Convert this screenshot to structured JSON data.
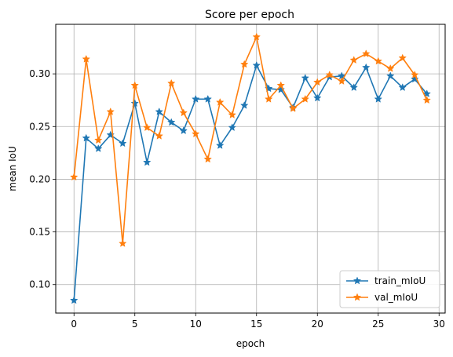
{
  "chart_data": {
    "type": "line",
    "title": "Score per epoch",
    "xlabel": "epoch",
    "ylabel": "mean IoU",
    "xlim": [
      -1.5,
      30.5
    ],
    "ylim": [
      0.073,
      0.347
    ],
    "xticks": [
      0,
      5,
      10,
      15,
      20,
      25,
      30
    ],
    "yticks": [
      0.1,
      0.15,
      0.2,
      0.25,
      0.3
    ],
    "ytick_labels": [
      "0.10",
      "0.15",
      "0.20",
      "0.25",
      "0.30"
    ],
    "grid": true,
    "legend": "lower-right",
    "marker": "star",
    "x": [
      0,
      1,
      2,
      3,
      4,
      5,
      6,
      7,
      8,
      9,
      10,
      11,
      12,
      13,
      14,
      15,
      16,
      17,
      18,
      19,
      20,
      21,
      22,
      23,
      24,
      25,
      26,
      27,
      28,
      29
    ],
    "series": [
      {
        "name": "train_mIoU",
        "color": "#1f77b4",
        "values": [
          0.085,
          0.239,
          0.229,
          0.242,
          0.234,
          0.272,
          0.216,
          0.264,
          0.254,
          0.246,
          0.276,
          0.276,
          0.232,
          0.249,
          0.27,
          0.308,
          0.286,
          0.285,
          0.268,
          0.296,
          0.277,
          0.297,
          0.298,
          0.287,
          0.306,
          0.276,
          0.298,
          0.287,
          0.295,
          0.281
        ]
      },
      {
        "name": "val_mIoU",
        "color": "#ff7f0e",
        "values": [
          0.202,
          0.314,
          0.237,
          0.264,
          0.139,
          0.289,
          0.249,
          0.241,
          0.291,
          0.263,
          0.243,
          0.219,
          0.273,
          0.261,
          0.309,
          0.335,
          0.276,
          0.289,
          0.267,
          0.276,
          0.292,
          0.299,
          0.293,
          0.313,
          0.319,
          0.312,
          0.305,
          0.315,
          0.299,
          0.275
        ]
      }
    ]
  }
}
